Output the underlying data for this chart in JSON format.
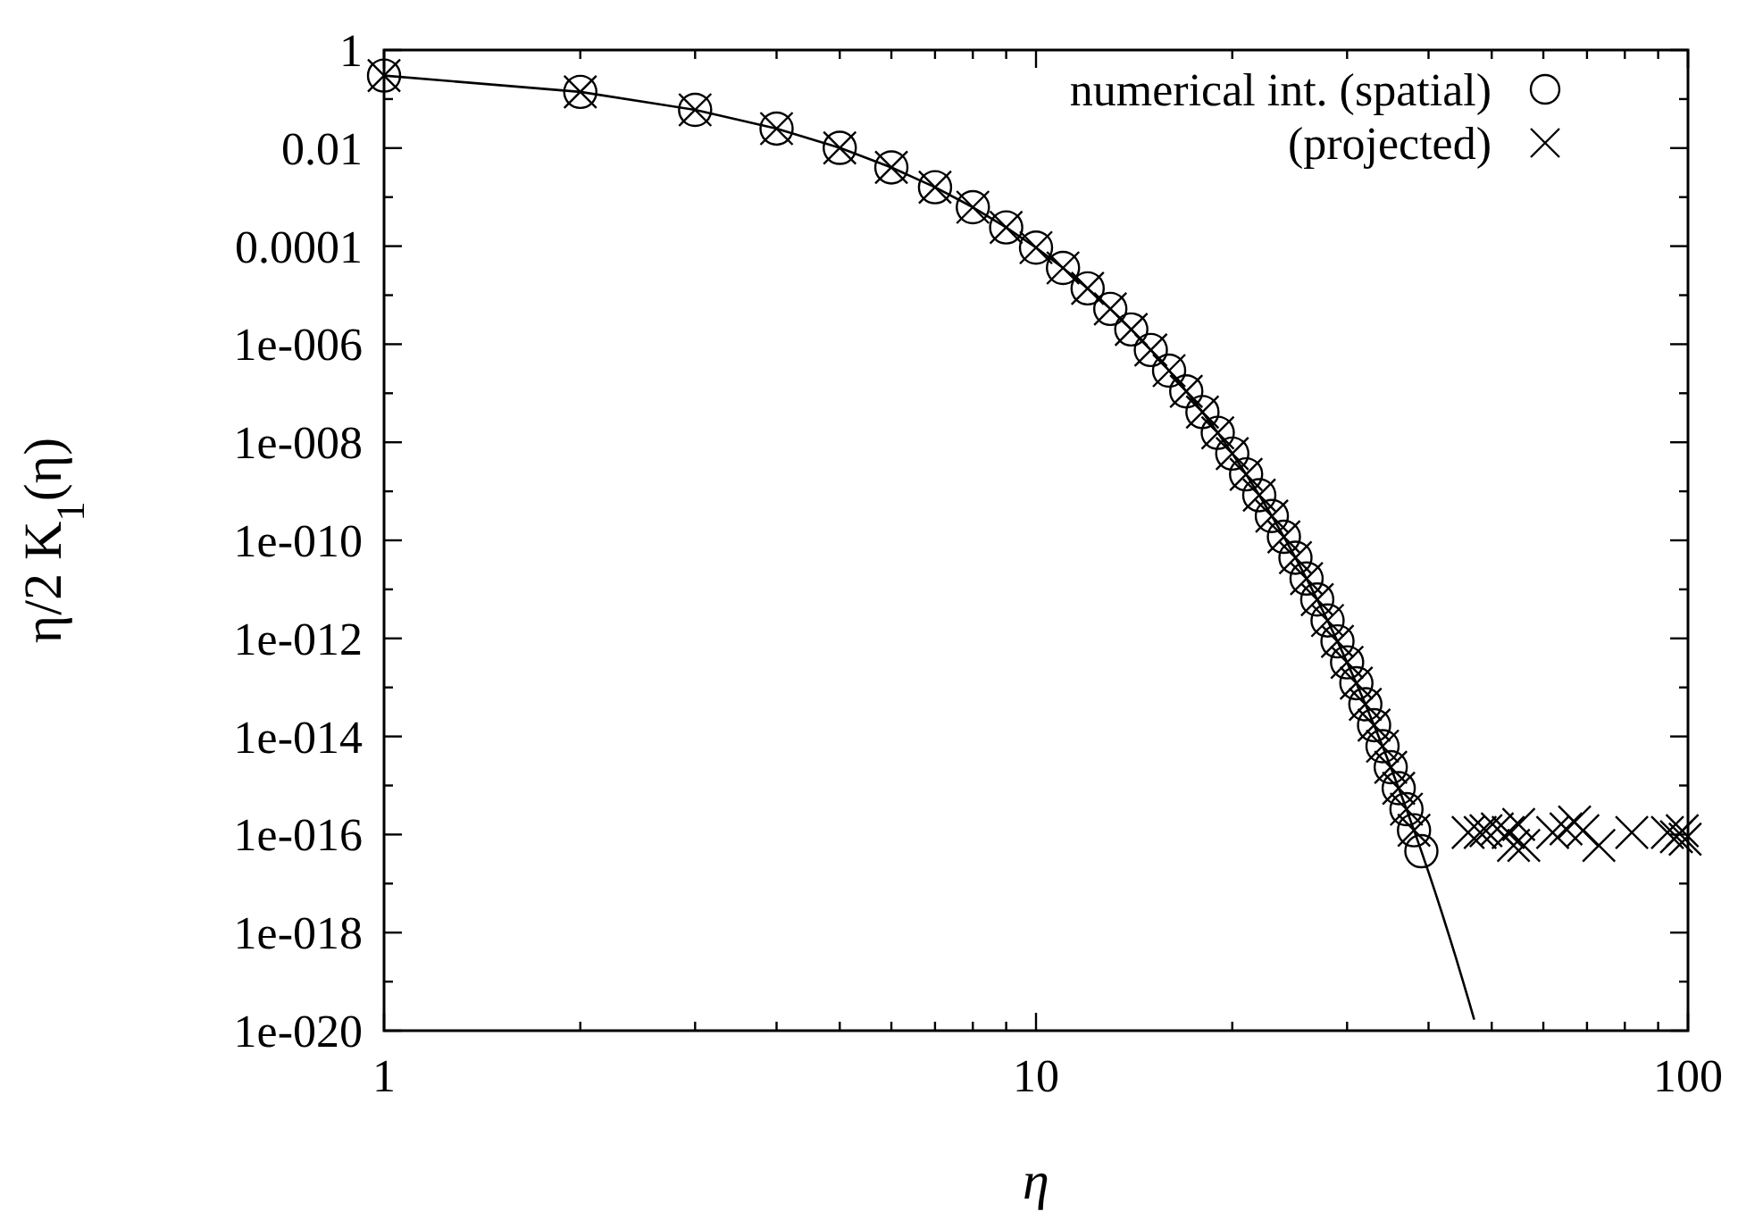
{
  "chart_data": {
    "type": "scatter",
    "xlabel": "η",
    "ylabel": "η/2 K$_{1}$(η)",
    "log": "xy",
    "legend": "top right",
    "xlim": [
      1,
      100
    ],
    "ylim": [
      1e-20,
      1
    ],
    "xticks": [
      1,
      {
        "value": 2,
        "label": null
      },
      {
        "value": 3,
        "label": null
      },
      {
        "value": 4,
        "label": null
      },
      {
        "value": 5,
        "label": null
      },
      {
        "value": 6,
        "label": null
      },
      {
        "value": 7,
        "label": null
      },
      {
        "value": 8,
        "label": null
      },
      {
        "value": 9,
        "label": null
      },
      10,
      {
        "value": 20,
        "label": null
      },
      {
        "value": 30,
        "label": null
      },
      {
        "value": 40,
        "label": null
      },
      {
        "value": 50,
        "label": null
      },
      {
        "value": 60,
        "label": null
      },
      {
        "value": 70,
        "label": null
      },
      {
        "value": 80,
        "label": null
      },
      {
        "value": 90,
        "label": null
      },
      100
    ],
    "yticks": [
      {
        "value": 1e-20,
        "label": "1e-020"
      },
      {
        "value": 1e-19,
        "label": null
      },
      {
        "value": 1e-18,
        "label": "1e-018"
      },
      {
        "value": 1e-17,
        "label": null
      },
      {
        "value": 1e-16,
        "label": "1e-016"
      },
      {
        "value": 1e-15,
        "label": null
      },
      {
        "value": 1e-14,
        "label": "1e-014"
      },
      {
        "value": 1e-13,
        "label": null
      },
      {
        "value": 1e-12,
        "label": "1e-012"
      },
      {
        "value": 1e-11,
        "label": null
      },
      {
        "value": 1e-10,
        "label": "1e-010"
      },
      {
        "value": 1e-09,
        "label": null
      },
      {
        "value": 1e-08,
        "label": "1e-008"
      },
      {
        "value": 1e-07,
        "label": null
      },
      {
        "value": 1e-06,
        "label": "1e-006"
      },
      {
        "value": 1e-05,
        "label": null
      },
      {
        "value": 0.0001,
        "label": "0.0001"
      },
      {
        "value": 0.001,
        "label": null
      },
      {
        "value": 0.01,
        "label": "0.01"
      },
      {
        "value": 0.1,
        "label": null
      },
      1
    ],
    "series": [
      {
        "type": "line",
        "color": "#000000",
        "marker": "none",
        "x": [
          1,
          2,
          3,
          4,
          5,
          6,
          7,
          8,
          9,
          10,
          11,
          12,
          13,
          14,
          15,
          16,
          17,
          18,
          19,
          20,
          21,
          22,
          23,
          24,
          25,
          26,
          27,
          28,
          29,
          30,
          31,
          32,
          33,
          34,
          35,
          36,
          37,
          38,
          39,
          40,
          41,
          42,
          43,
          44,
          45,
          46,
          47
        ],
        "values": [
          0.301,
          0.1399,
          0.0602,
          0.02497,
          0.0101,
          0.00403,
          0.00159,
          0.000622,
          0.000241,
          9.33e-05,
          3.59e-05,
          1.374e-05,
          5.25e-06,
          2e-06,
          7.61e-07,
          2.89e-07,
          1.093e-07,
          4.13e-08,
          1.56e-08,
          5.88e-09,
          2.22e-09,
          8.33e-10,
          3.13e-10,
          1.18e-10,
          4.42e-11,
          1.66e-11,
          6.2e-12,
          2.32e-12,
          8.7e-13,
          3.25e-13,
          1.22e-13,
          4.54e-14,
          1.7e-14,
          6.33e-15,
          2.36e-15,
          8.8e-16,
          3.29e-16,
          1.22e-16,
          4.57e-17,
          1.7e-17,
          6.33e-18,
          2.36e-18,
          8.77e-19,
          3.26e-19,
          1.21e-19,
          4.51e-20,
          1.68e-20
        ]
      },
      {
        "name": "numerical int. (spatial)",
        "color": "#000000",
        "marker": "circle",
        "x": [
          1,
          2,
          3,
          4,
          5,
          6,
          7,
          8,
          9,
          10,
          11,
          12,
          13,
          14,
          15,
          16,
          17,
          18,
          19,
          20,
          21,
          22,
          23,
          24,
          25,
          26,
          27,
          28,
          29,
          30,
          31,
          32,
          33,
          34,
          35,
          36,
          37,
          38,
          39
        ],
        "values": [
          0.301,
          0.1399,
          0.0602,
          0.02497,
          0.0101,
          0.00403,
          0.00159,
          0.000622,
          0.000241,
          9.33e-05,
          3.59e-05,
          1.374e-05,
          5.25e-06,
          2e-06,
          7.61e-07,
          2.89e-07,
          1.093e-07,
          4.13e-08,
          1.56e-08,
          5.88e-09,
          2.22e-09,
          8.33e-10,
          3.13e-10,
          1.18e-10,
          4.42e-11,
          1.66e-11,
          6.2e-12,
          2.32e-12,
          8.7e-13,
          3.25e-13,
          1.22e-13,
          4.54e-14,
          1.7e-14,
          6.33e-15,
          2.36e-15,
          8.8e-16,
          3.29e-16,
          1.22e-16,
          4.57e-17
        ]
      },
      {
        "name": "(projected)",
        "color": "#000000",
        "marker": "cross",
        "x": [
          1,
          2,
          3,
          4,
          5,
          6,
          7,
          8,
          9,
          10,
          11,
          12,
          13,
          14,
          15,
          16,
          17,
          18,
          19,
          20,
          21,
          22,
          23,
          24,
          25,
          26,
          27,
          28,
          29,
          30,
          31,
          32,
          33,
          34,
          35,
          36,
          37,
          38,
          46,
          48,
          49,
          51,
          53,
          54,
          55,
          56,
          62,
          65,
          67,
          69,
          73,
          82,
          93,
          96,
          98,
          99
        ],
        "values": [
          0.301,
          0.1399,
          0.0602,
          0.02497,
          0.0101,
          0.00403,
          0.00159,
          0.000622,
          0.000241,
          9.33e-05,
          3.59e-05,
          1.374e-05,
          5.25e-06,
          2e-06,
          7.61e-07,
          2.89e-07,
          1.093e-07,
          4.13e-08,
          1.56e-08,
          5.88e-09,
          2.22e-09,
          8.33e-10,
          3.13e-10,
          1.18e-10,
          4.42e-11,
          1.66e-11,
          6.2e-12,
          2.32e-12,
          8.7e-13,
          3.25e-13,
          1.22e-13,
          4.54e-14,
          1.7e-14,
          6.33e-15,
          2.36e-15,
          8.8e-16,
          3.29e-16,
          1.22e-16,
          1.1e-16,
          1.1e-16,
          1.2e-16,
          1.3e-16,
          1.1e-16,
          6e-17,
          1.6e-16,
          6e-17,
          1.1e-16,
          1.3e-16,
          1.8e-16,
          1.2e-16,
          6e-17,
          1.1e-16,
          1.1e-16,
          9e-17,
          1.2e-16,
          8e-17
        ]
      }
    ]
  }
}
